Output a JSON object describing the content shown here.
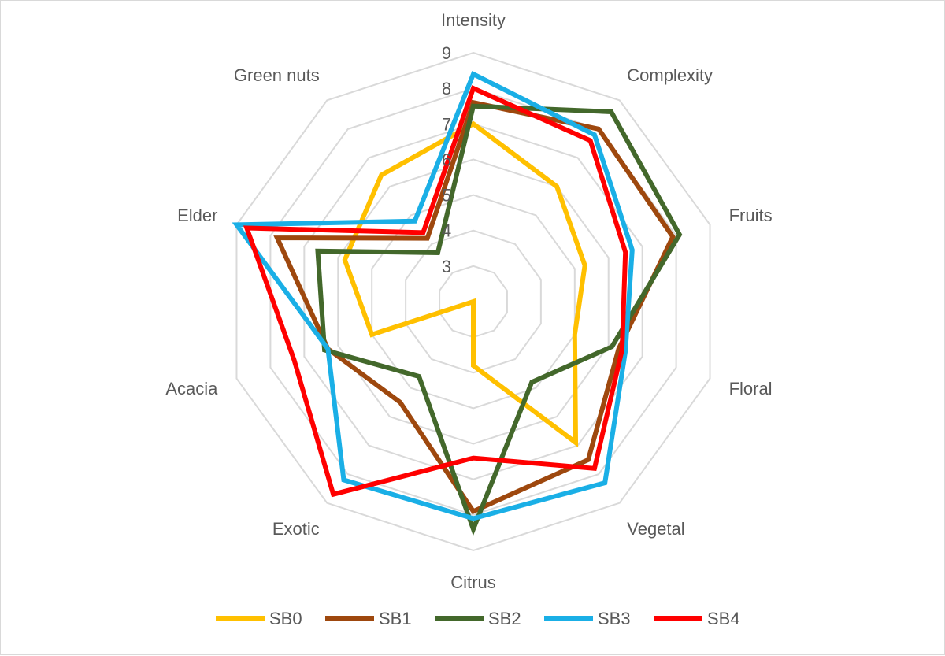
{
  "chart_data": {
    "type": "radar",
    "categories": [
      "Intensity",
      "Complexity",
      "Fruits",
      "Floral",
      "Vegetal",
      "Citrus",
      "Exotic",
      "Acacia",
      "Elder",
      "Green nuts"
    ],
    "rlim": [
      2,
      9
    ],
    "ticks": [
      3,
      4,
      5,
      6,
      7,
      8,
      9
    ],
    "grid": true,
    "legend_position": "bottom",
    "series": [
      {
        "name": "SB0",
        "color": "#FFC000",
        "values": [
          7.0,
          6.0,
          5.3,
          5.0,
          6.9,
          3.8,
          2.0,
          5.0,
          5.8,
          6.4
        ]
      },
      {
        "name": "SB1",
        "color": "#9E480E",
        "values": [
          7.6,
          8.0,
          7.9,
          6.3,
          7.5,
          7.9,
          5.5,
          6.3,
          7.8,
          4.2
        ]
      },
      {
        "name": "SB2",
        "color": "#43682B",
        "values": [
          7.5,
          8.6,
          8.1,
          6.1,
          4.8,
          8.4,
          4.6,
          6.4,
          6.6,
          3.7
        ]
      },
      {
        "name": "SB3",
        "color": "#1AAFE6",
        "values": [
          8.4,
          7.8,
          6.7,
          6.5,
          8.3,
          8.1,
          8.2,
          6.3,
          9.0,
          4.8
        ]
      },
      {
        "name": "SB4",
        "color": "#FF0000",
        "values": [
          8.0,
          7.6,
          6.5,
          6.4,
          7.8,
          6.4,
          8.7,
          7.3,
          8.7,
          4.4
        ]
      }
    ]
  }
}
